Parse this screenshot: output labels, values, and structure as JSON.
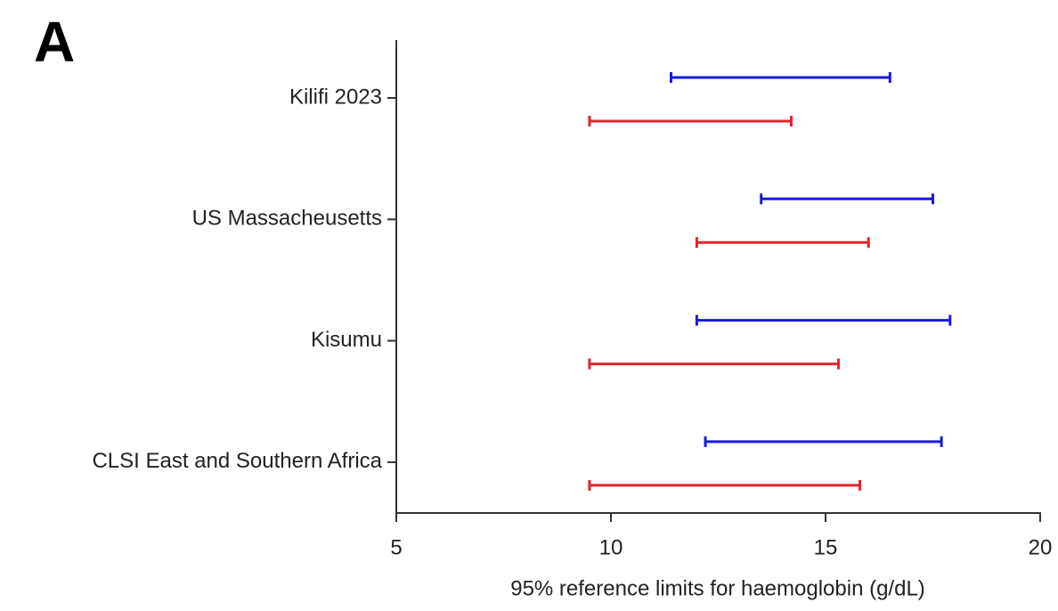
{
  "chart_data": {
    "type": "range",
    "panel_label": "A",
    "x_label": "95% reference limits for haemoglobin (g/dL)",
    "categories": [
      "Kilifi 2023",
      "US Massacheusetts",
      "Kisumu",
      "CLSI East and Southern Africa"
    ],
    "series": [
      {
        "color": "#1a1adb",
        "low": [
          11.4,
          13.5,
          12.0,
          12.2
        ],
        "high": [
          16.5,
          17.5,
          17.9,
          17.7
        ]
      },
      {
        "color": "#e0262e",
        "low": [
          9.5,
          12.0,
          9.5,
          9.5
        ],
        "high": [
          14.2,
          16.0,
          15.3,
          15.8
        ]
      }
    ],
    "xlim": [
      5,
      20
    ],
    "xticks": [
      5,
      10,
      15,
      20
    ]
  }
}
